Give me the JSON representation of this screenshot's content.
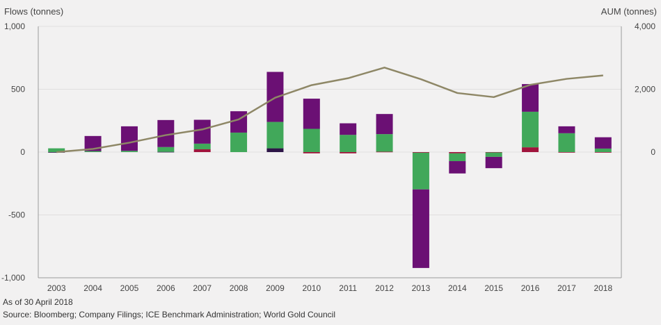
{
  "chart_data": {
    "type": "bar",
    "subtype": "stacked-bar-with-line",
    "categories": [
      "2003",
      "2004",
      "2005",
      "2006",
      "2007",
      "2008",
      "2009",
      "2010",
      "2011",
      "2012",
      "2013",
      "2014",
      "2015",
      "2016",
      "2017",
      "2018"
    ],
    "y_left": {
      "label": "Flows (tonnes)",
      "ylim": [
        -1000,
        1000
      ],
      "ticks": [
        -1000,
        -500,
        0,
        500,
        1000
      ],
      "tick_labels": [
        "-1,000",
        "-500",
        "0",
        "500",
        "1,000"
      ]
    },
    "y_right": {
      "label": "AUM (tonnes)",
      "ylim": [
        -4000,
        4000
      ],
      "ticks": [
        0,
        2000,
        4000
      ],
      "tick_labels": [
        "0",
        "2,000",
        "4,000"
      ]
    },
    "series": [
      {
        "color": "#2d1547",
        "values": [
          -3,
          0,
          0,
          2,
          0,
          0,
          30,
          0,
          0,
          0,
          0,
          0,
          0,
          0,
          0,
          0
        ]
      },
      {
        "color": "#a0143c",
        "values": [
          0,
          0,
          0,
          0,
          22,
          0,
          0,
          -10,
          -10,
          3,
          -5,
          -10,
          -3,
          38,
          -2,
          -3
        ]
      },
      {
        "color": "#41a85a",
        "values": [
          30,
          8,
          10,
          38,
          45,
          155,
          210,
          185,
          137,
          140,
          -292,
          -62,
          -35,
          283,
          150,
          28
        ]
      },
      {
        "color": "#6b1074",
        "values": [
          0,
          120,
          195,
          215,
          190,
          170,
          398,
          240,
          92,
          160,
          -625,
          -98,
          -90,
          220,
          55,
          90
        ]
      }
    ],
    "line": {
      "color": "#8e8766",
      "axis": "right",
      "values": [
        0,
        100,
        300,
        540,
        720,
        1040,
        1730,
        2130,
        2350,
        2690,
        2320,
        1880,
        1750,
        2140,
        2330,
        2440
      ]
    },
    "grid": true
  },
  "note": "As of 30 April 2018",
  "source": "Source: Bloomberg; Company Filings; ICE Benchmark Administration; World Gold Council"
}
